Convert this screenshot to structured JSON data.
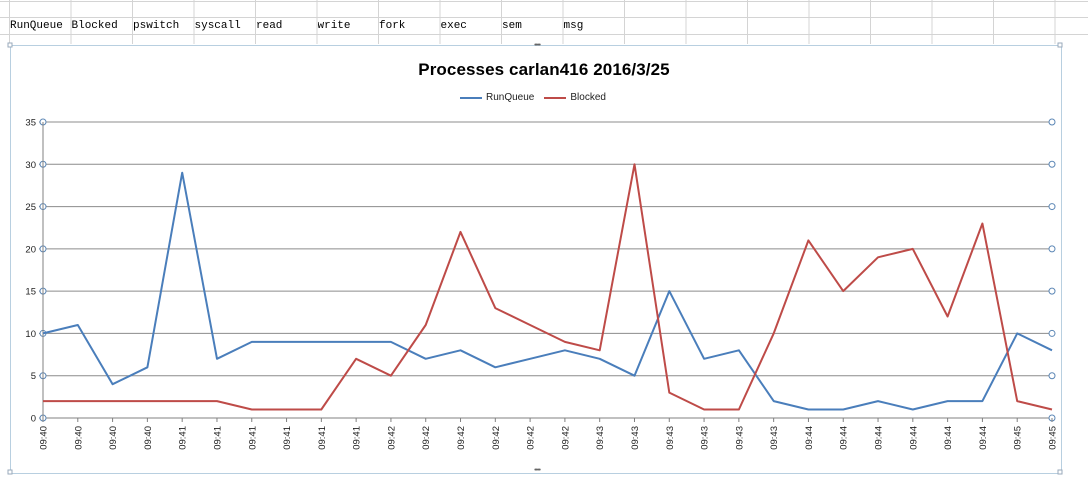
{
  "sheet": {
    "headers": [
      "RunQueue",
      "Blocked",
      "pswitch",
      "syscall",
      "read",
      "write",
      "fork",
      "exec",
      "sem",
      "msg"
    ]
  },
  "chart_data": {
    "type": "line",
    "title": "Processes carlan416  2016/3/25",
    "categories": [
      "09:40",
      "09:40",
      "09:40",
      "09:40",
      "09:41",
      "09:41",
      "09:41",
      "09:41",
      "09:41",
      "09:41",
      "09:42",
      "09:42",
      "09:42",
      "09:42",
      "09:42",
      "09:42",
      "09:43",
      "09:43",
      "09:43",
      "09:43",
      "09:43",
      "09:43",
      "09:44",
      "09:44",
      "09:44",
      "09:44",
      "09:44",
      "09:44",
      "09:45",
      "09:45"
    ],
    "series": [
      {
        "name": "RunQueue",
        "color": "#4a7ebb",
        "values": [
          10,
          11,
          4,
          6,
          29,
          7,
          9,
          9,
          9,
          9,
          9,
          7,
          8,
          6,
          7,
          8,
          7,
          5,
          15,
          7,
          8,
          2,
          1,
          1,
          2,
          1,
          2,
          2,
          10,
          8
        ]
      },
      {
        "name": "Blocked",
        "color": "#be4b48",
        "values": [
          2,
          2,
          2,
          2,
          2,
          2,
          1,
          1,
          1,
          7,
          5,
          11,
          22,
          13,
          11,
          9,
          8,
          30,
          3,
          1,
          1,
          10,
          21,
          15,
          19,
          20,
          12,
          23,
          2,
          1
        ]
      }
    ],
    "ylim": [
      0,
      35
    ],
    "yticks": [
      0,
      5,
      10,
      15,
      20,
      25,
      30,
      35
    ],
    "grid": true,
    "legend": "top"
  }
}
